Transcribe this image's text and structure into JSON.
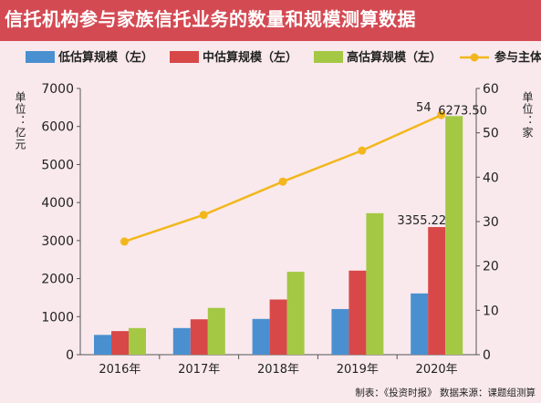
{
  "title": "信托机构参与家族信托业务的数量和规模测算数据",
  "source_note": "制表：《投资时报》 数据来源：课题组测算",
  "chart_data": {
    "type": "bar",
    "categories": [
      "2016年",
      "2017年",
      "2018年",
      "2019年",
      "2020年"
    ],
    "series": [
      {
        "name": "低估算规模（左）",
        "type": "bar",
        "axis": "left",
        "color": "#4a90d0",
        "values": [
          520,
          700,
          940,
          1200,
          1610
        ]
      },
      {
        "name": "中估算规模（左）",
        "type": "bar",
        "axis": "left",
        "color": "#d84848",
        "values": [
          620,
          930,
          1450,
          2210,
          3355.22
        ]
      },
      {
        "name": "高估算规模（左）",
        "type": "bar",
        "axis": "left",
        "color": "#a4c844",
        "values": [
          700,
          1230,
          2180,
          3720,
          6273.5
        ]
      },
      {
        "name": "参与主体（右）",
        "type": "line",
        "axis": "right",
        "color": "#f2b71c",
        "values": [
          25.5,
          31.5,
          39,
          46,
          54
        ]
      }
    ],
    "y_left": {
      "label": "单位：亿元",
      "ylim": [
        0,
        7000
      ],
      "ticks": [
        "0",
        "1000",
        "2000",
        "3000",
        "4000",
        "5000",
        "6000",
        "7000"
      ]
    },
    "y_right": {
      "label": "单位：家",
      "ylim": [
        0,
        60
      ],
      "ticks": [
        "0",
        "10",
        "20",
        "30",
        "40",
        "50",
        "60"
      ]
    },
    "data_labels": [
      {
        "text": "3355.22",
        "series": 1,
        "index": 4
      },
      {
        "text": "6273.50",
        "series": 2,
        "index": 4
      },
      {
        "text": "54",
        "series": 3,
        "index": 4
      }
    ],
    "legend_placement": "top",
    "grid": false
  }
}
